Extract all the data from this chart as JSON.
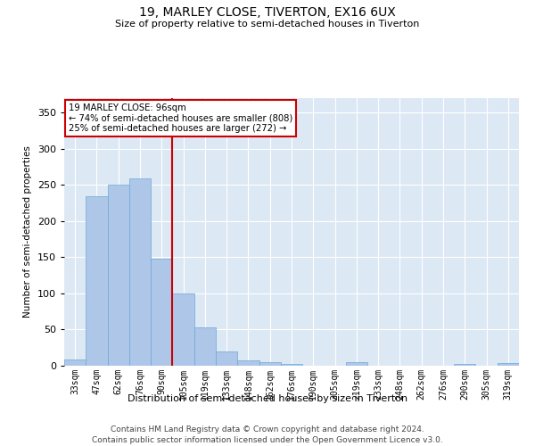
{
  "title": "19, MARLEY CLOSE, TIVERTON, EX16 6UX",
  "subtitle": "Size of property relative to semi-detached houses in Tiverton",
  "xlabel": "Distribution of semi-detached houses by size in Tiverton",
  "ylabel": "Number of semi-detached properties",
  "footer_line1": "Contains HM Land Registry data © Crown copyright and database right 2024.",
  "footer_line2": "Contains public sector information licensed under the Open Government Licence v3.0.",
  "annotation_title": "19 MARLEY CLOSE: 96sqm",
  "annotation_line1": "← 74% of semi-detached houses are smaller (808)",
  "annotation_line2": "25% of semi-detached houses are larger (272) →",
  "bar_labels": [
    "33sqm",
    "47sqm",
    "62sqm",
    "76sqm",
    "90sqm",
    "105sqm",
    "119sqm",
    "133sqm",
    "148sqm",
    "162sqm",
    "176sqm",
    "190sqm",
    "205sqm",
    "219sqm",
    "233sqm",
    "248sqm",
    "262sqm",
    "276sqm",
    "290sqm",
    "305sqm",
    "319sqm"
  ],
  "bar_values": [
    9,
    234,
    250,
    259,
    148,
    100,
    53,
    20,
    8,
    5,
    3,
    0,
    0,
    5,
    0,
    0,
    0,
    0,
    2,
    0,
    4
  ],
  "bar_color": "#aec6e8",
  "bar_edge_color": "#6aaad4",
  "red_line_color": "#cc0000",
  "annotation_box_color": "#cc0000",
  "plot_background": "#dde8f5",
  "ylim": [
    0,
    370
  ],
  "yticks": [
    0,
    50,
    100,
    150,
    200,
    250,
    300,
    350
  ]
}
